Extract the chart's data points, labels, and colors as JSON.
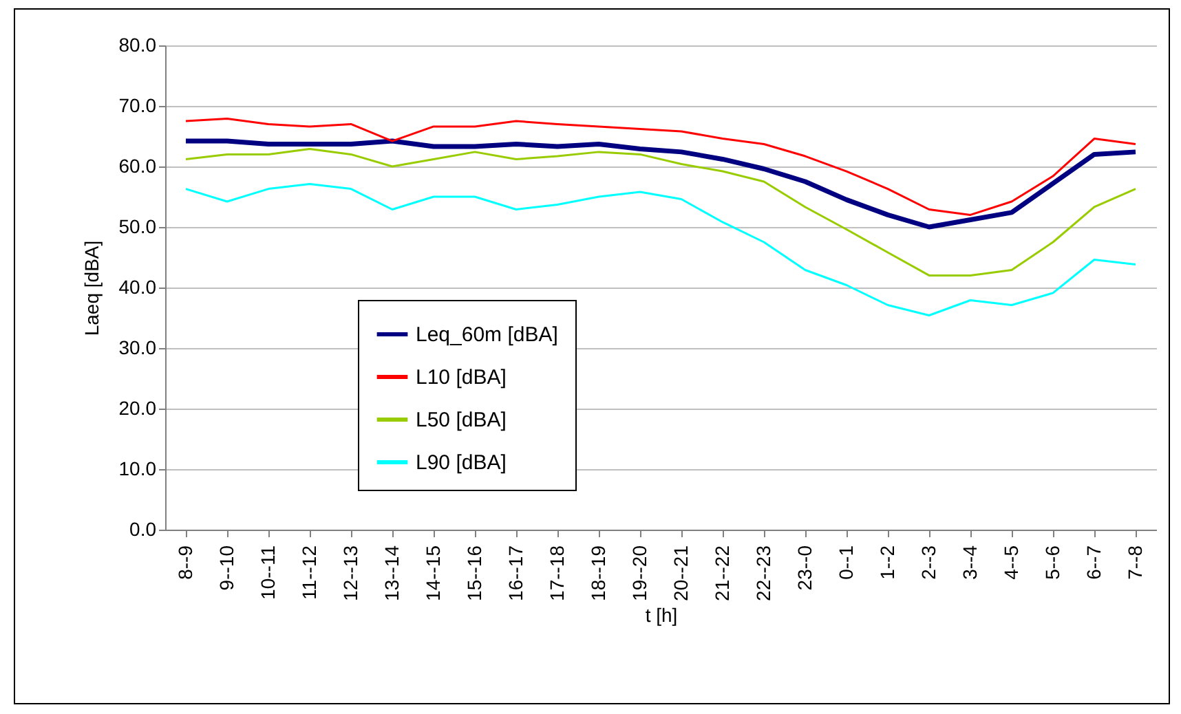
{
  "chart_data": {
    "type": "line",
    "xlabel": "t [h]",
    "ylabel": "Laeq [dBA]",
    "categories": [
      "8--9",
      "9--10",
      "10--11",
      "11--12",
      "12--13",
      "13--14",
      "14--15",
      "15--16",
      "16--17",
      "17--18",
      "18--19",
      "19--20",
      "20--21",
      "21--22",
      "22--23",
      "23--0",
      "0--1",
      "1--2",
      "2--3",
      "3--4",
      "4--5",
      "5--6",
      "6--7",
      "7--8"
    ],
    "series": [
      {
        "name": "Leq_60m [dBA]",
        "color": "#000080",
        "values": [
          64.2,
          64.2,
          63.7,
          63.7,
          63.7,
          64.2,
          63.3,
          63.3,
          63.7,
          63.3,
          63.7,
          62.9,
          62.4,
          61.2,
          59.6,
          57.5,
          54.5,
          52.0,
          50.0,
          51.2,
          52.4,
          57.2,
          62.0,
          62.4
        ]
      },
      {
        "name": "L10 [dBA]",
        "color": "#ff0000",
        "values": [
          67.5,
          67.9,
          67.0,
          66.6,
          67.0,
          64.2,
          66.6,
          66.6,
          67.5,
          67.0,
          66.6,
          66.2,
          65.8,
          64.6,
          63.7,
          61.7,
          59.2,
          56.3,
          52.9,
          52.0,
          54.2,
          58.4,
          64.6,
          63.7
        ]
      },
      {
        "name": "L50 [dBA]",
        "color": "#99cc00",
        "values": [
          61.2,
          62.0,
          62.0,
          62.9,
          62.0,
          60.0,
          61.2,
          62.4,
          61.2,
          61.7,
          62.4,
          62.0,
          60.4,
          59.2,
          57.5,
          53.3,
          49.6,
          45.8,
          42.0,
          42.0,
          42.9,
          47.5,
          53.3,
          56.3
        ]
      },
      {
        "name": "L90 [dBA]",
        "color": "#00ffff",
        "values": [
          56.3,
          54.2,
          56.3,
          57.1,
          56.3,
          52.9,
          55.0,
          55.0,
          52.9,
          53.7,
          55.0,
          55.8,
          54.6,
          50.8,
          47.5,
          42.9,
          40.4,
          37.1,
          35.4,
          37.9,
          37.1,
          39.1,
          44.6,
          43.8
        ]
      }
    ],
    "ylim": [
      0,
      80
    ],
    "yticks": [
      {
        "value": 0,
        "label": "0.0"
      },
      {
        "value": 10,
        "label": "10.0"
      },
      {
        "value": 20,
        "label": "20.0"
      },
      {
        "value": 30,
        "label": "30.0"
      },
      {
        "value": 40,
        "label": "40.0"
      },
      {
        "value": 50,
        "label": "50.0"
      },
      {
        "value": 60,
        "label": "60.0"
      },
      {
        "value": 70,
        "label": "70.0"
      },
      {
        "value": 80,
        "label": "80.0"
      }
    ],
    "grid": "y",
    "legend": "left",
    "marker": "none",
    "line_style": "solid"
  }
}
